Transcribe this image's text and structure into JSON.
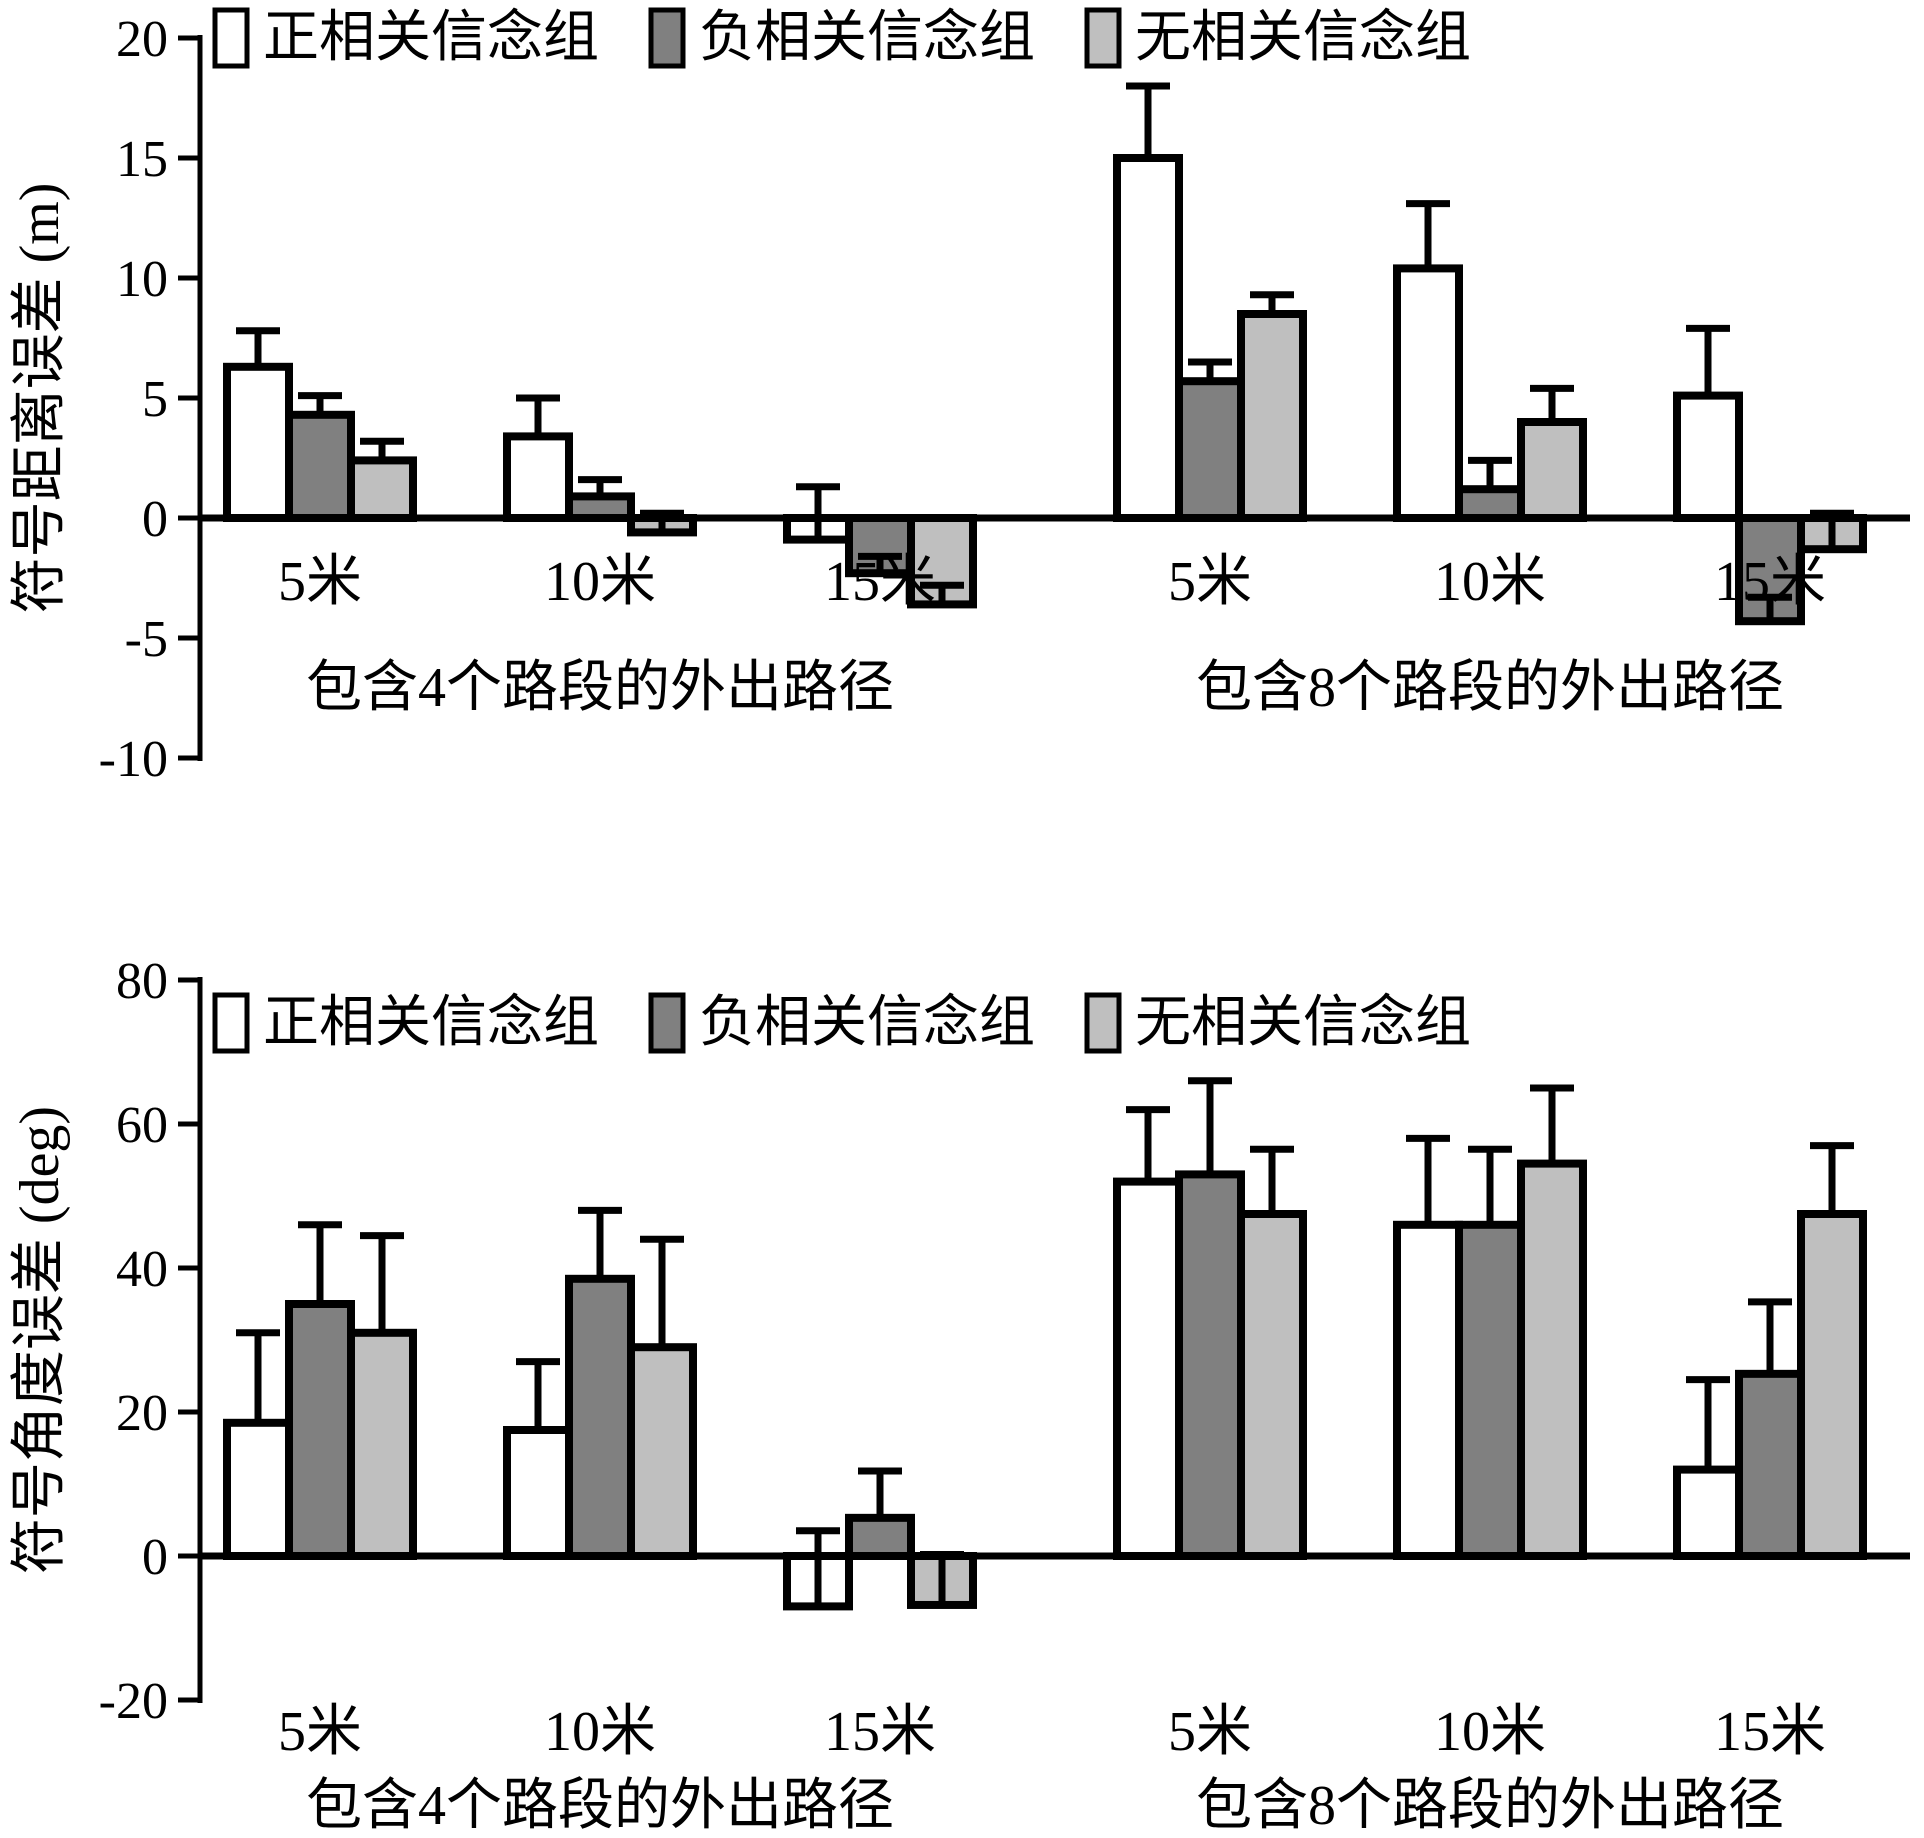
{
  "figure": {
    "background": "#ffffff",
    "ink_color": "#000000"
  },
  "chart_data": [
    {
      "type": "bar",
      "title": "",
      "ylabel": "符号距离误差 (m)",
      "ylim": [
        -10,
        20
      ],
      "yticks": [
        20,
        15,
        10,
        5,
        0,
        -5,
        -10
      ],
      "grid": false,
      "legend_position": "top-inside",
      "categories": [
        "5米",
        "10米",
        "15米",
        "5米",
        "10米",
        "15米"
      ],
      "group_labels": [
        "包含4个路段的外出路径",
        "包含8个路段的外出路径"
      ],
      "series": [
        {
          "name": "正相关信念组",
          "color": "#ffffff",
          "values": [
            6.3,
            3.4,
            -0.9,
            15.0,
            10.4,
            5.1
          ],
          "errors": [
            1.5,
            1.6,
            2.2,
            3.0,
            2.7,
            2.8
          ]
        },
        {
          "name": "负相关信念组",
          "color": "#808080",
          "values": [
            4.3,
            0.9,
            -2.3,
            5.7,
            1.2,
            -4.3
          ],
          "errors": [
            0.8,
            0.7,
            0.7,
            0.8,
            1.2,
            1.0
          ]
        },
        {
          "name": "无相关信念组",
          "color": "#bfbfbf",
          "values": [
            2.4,
            -0.6,
            -3.6,
            8.5,
            4.0,
            -1.3
          ],
          "errors": [
            0.8,
            0.8,
            0.8,
            0.8,
            1.4,
            1.5
          ]
        }
      ]
    },
    {
      "type": "bar",
      "title": "",
      "ylabel": "符号角度误差 (deg)",
      "ylim": [
        -20,
        80
      ],
      "yticks": [
        80,
        60,
        40,
        20,
        0,
        -20
      ],
      "grid": false,
      "legend_position": "top-inside",
      "categories": [
        "5米",
        "10米",
        "15米",
        "5米",
        "10米",
        "15米"
      ],
      "group_labels": [
        "包含4个路段的外出路径",
        "包含8个路段的外出路径"
      ],
      "series": [
        {
          "name": "正相关信念组",
          "color": "#ffffff",
          "values": [
            18.5,
            17.5,
            -7.0,
            52.0,
            46.0,
            12.0
          ],
          "errors": [
            12.5,
            9.5,
            10.5,
            10.0,
            12.0,
            12.5
          ]
        },
        {
          "name": "负相关信念组",
          "color": "#808080",
          "values": [
            35.0,
            38.5,
            5.3,
            53.0,
            46.0,
            25.3
          ],
          "errors": [
            11.0,
            9.5,
            6.5,
            13.0,
            10.5,
            10.0
          ]
        },
        {
          "name": "无相关信念组",
          "color": "#bfbfbf",
          "values": [
            31.0,
            29.0,
            -6.8,
            47.5,
            54.5,
            47.5
          ],
          "errors": [
            13.5,
            15.0,
            7.0,
            9.0,
            10.5,
            9.5
          ]
        }
      ]
    }
  ]
}
